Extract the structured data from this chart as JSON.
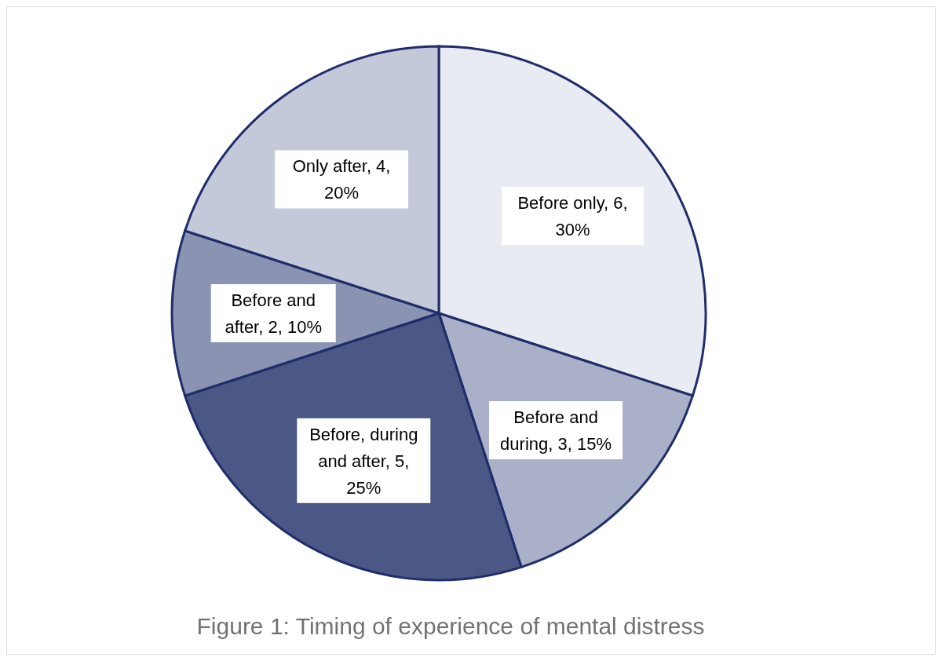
{
  "chart_data": {
    "type": "pie",
    "title": "Figure 1: Timing of experience of mental distress",
    "categories": [
      "Before only",
      "Before and during",
      "Before, during and after",
      "Before and after",
      "Only after"
    ],
    "values": [
      6,
      3,
      5,
      2,
      4
    ],
    "value_labels": [
      ", 6, 30%",
      ", 3, 15%",
      ", 5, 25%",
      ", 2, 10%",
      ", 4, 20%"
    ],
    "colors": [
      "#e9ebf2",
      "#a9b0c8",
      "#4b5784",
      "#8a93b2",
      "#c4c9da"
    ]
  }
}
